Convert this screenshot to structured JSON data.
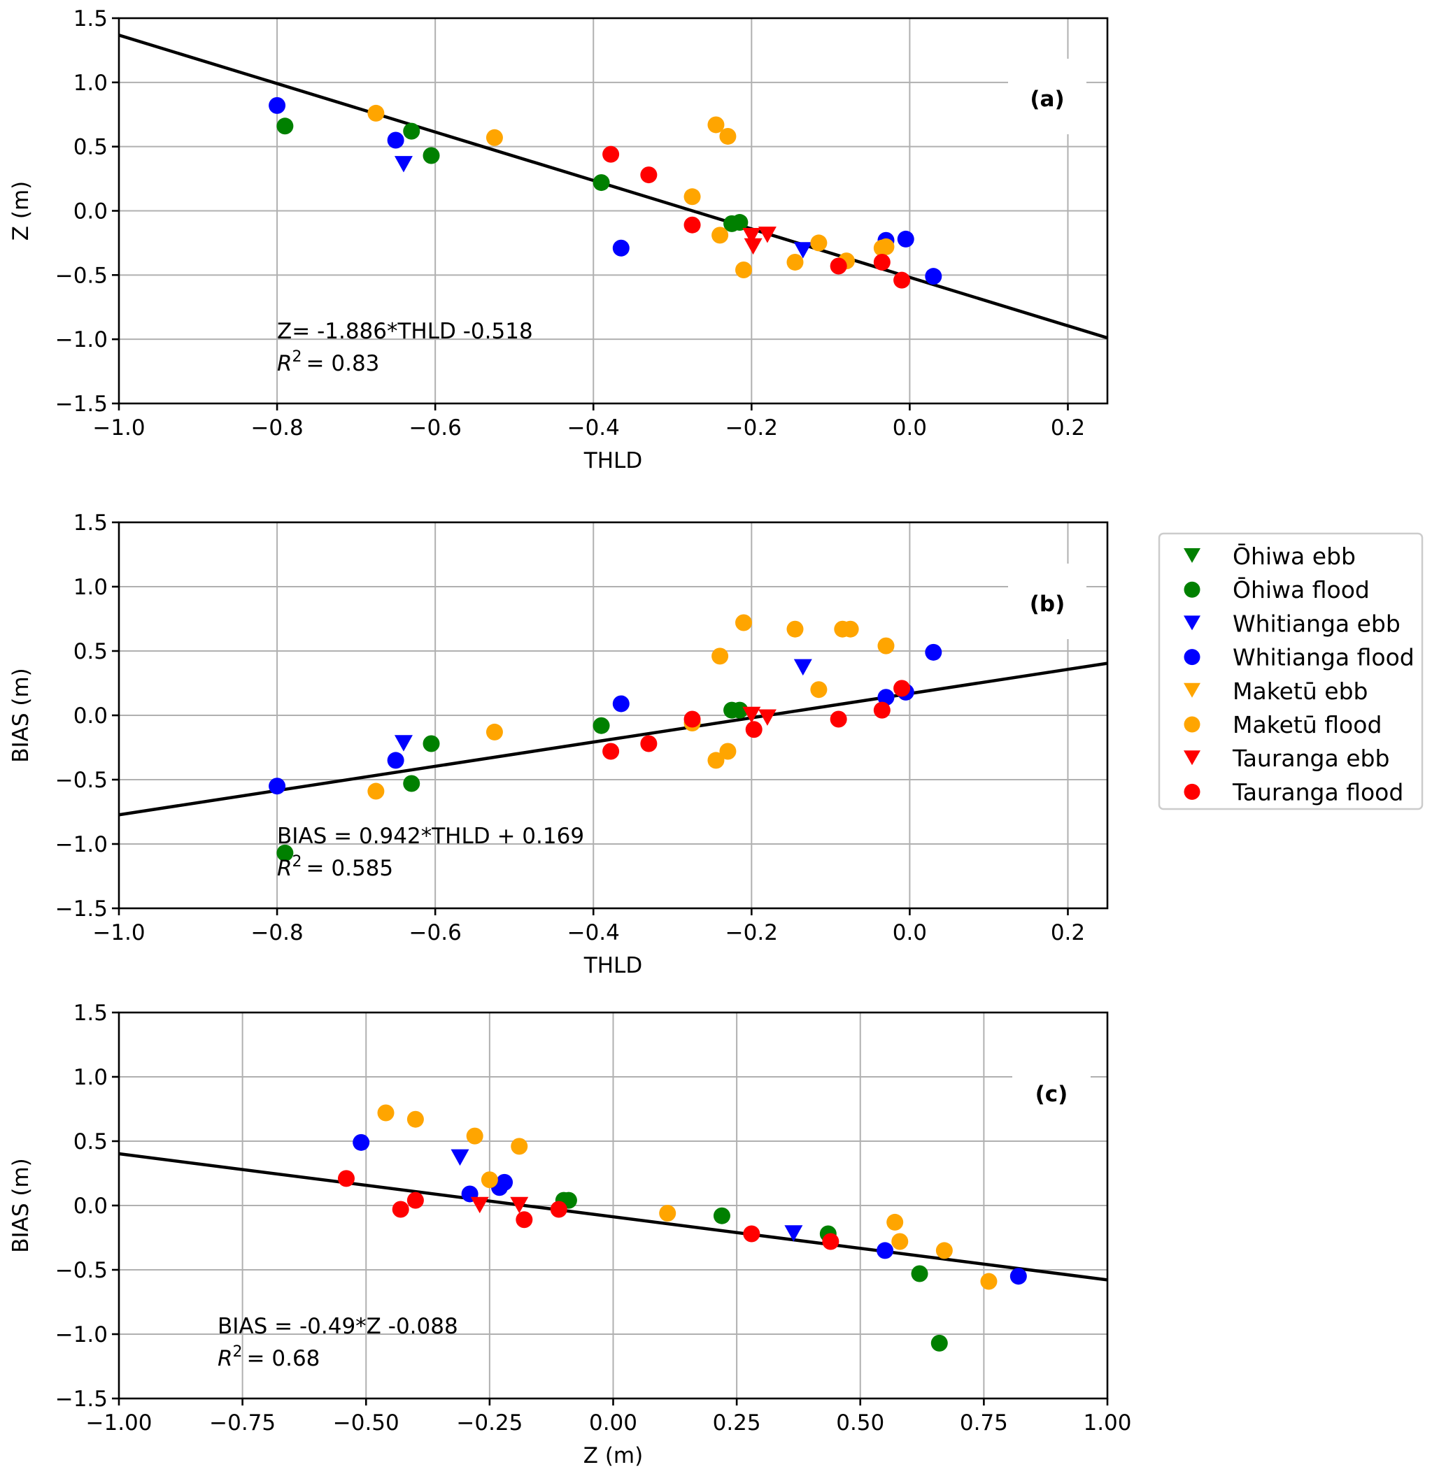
{
  "figure": {
    "legend": {
      "placement": "right-middle",
      "entries": [
        {
          "label": "Ōhiwa ebb",
          "marker": "triangle-down",
          "color": "#008000"
        },
        {
          "label": "Ōhiwa flood",
          "marker": "circle",
          "color": "#008000"
        },
        {
          "label": "Whitianga ebb",
          "marker": "triangle-down",
          "color": "#0000ff"
        },
        {
          "label": "Whitianga flood",
          "marker": "circle",
          "color": "#0000ff"
        },
        {
          "label": "Maketū ebb",
          "marker": "triangle-down",
          "color": "#ffa500"
        },
        {
          "label": "Maketū flood",
          "marker": "circle",
          "color": "#ffa500"
        },
        {
          "label": "Tauranga ebb",
          "marker": "triangle-down",
          "color": "#ff0000"
        },
        {
          "label": "Tauranga flood",
          "marker": "circle",
          "color": "#ff0000"
        }
      ]
    }
  },
  "chart_data": [
    {
      "type": "scatter",
      "panel": "(a)",
      "title": "",
      "xlabel": "THLD",
      "ylabel": "Z (m)",
      "xlim": [
        -1.0,
        0.25
      ],
      "ylim": [
        -1.5,
        1.5
      ],
      "xticks": [
        -1.0,
        -0.8,
        -0.6,
        -0.4,
        -0.2,
        0.0,
        0.2
      ],
      "xtick_labels": [
        "−1.0",
        "−0.8",
        "−0.6",
        "−0.4",
        "−0.2",
        "0.0",
        "0.2"
      ],
      "yticks": [
        1.5,
        1.0,
        0.5,
        0.0,
        -0.5,
        -1.0,
        -1.5
      ],
      "ytick_labels": [
        "1.5",
        "1.0",
        "0.5",
        "0.0",
        "−0.5",
        "−1.0",
        "−1.5"
      ],
      "grid": true,
      "fit": {
        "slope": -1.886,
        "intercept": -0.518
      },
      "equation": "Z= -1.886*THLD -0.518",
      "r2_label": "= 0.83",
      "series": [
        {
          "name": "Ōhiwa ebb",
          "points": []
        },
        {
          "name": "Ōhiwa flood",
          "points": [
            [
              -0.79,
              0.66
            ],
            [
              -0.63,
              0.62
            ],
            [
              -0.605,
              0.43
            ],
            [
              -0.39,
              0.22
            ],
            [
              -0.225,
              -0.1
            ],
            [
              -0.215,
              -0.09
            ]
          ]
        },
        {
          "name": "Whitianga ebb",
          "points": [
            [
              -0.64,
              0.37
            ],
            [
              -0.135,
              -0.3
            ]
          ]
        },
        {
          "name": "Whitianga flood",
          "points": [
            [
              -0.8,
              0.82
            ],
            [
              -0.65,
              0.55
            ],
            [
              -0.365,
              -0.29
            ],
            [
              -0.03,
              -0.23
            ],
            [
              -0.005,
              -0.22
            ],
            [
              0.03,
              -0.51
            ]
          ]
        },
        {
          "name": "Maketū ebb",
          "points": []
        },
        {
          "name": "Maketū flood",
          "points": [
            [
              -0.675,
              0.76
            ],
            [
              -0.525,
              0.57
            ],
            [
              -0.245,
              0.67
            ],
            [
              -0.23,
              0.58
            ],
            [
              -0.275,
              0.11
            ],
            [
              -0.24,
              -0.19
            ],
            [
              -0.21,
              -0.46
            ],
            [
              -0.145,
              -0.4
            ],
            [
              -0.115,
              -0.25
            ],
            [
              -0.08,
              -0.39
            ],
            [
              -0.03,
              -0.28
            ],
            [
              -0.035,
              -0.29
            ]
          ]
        },
        {
          "name": "Tauranga ebb",
          "points": [
            [
              -0.2,
              -0.19
            ],
            [
              -0.198,
              -0.27
            ],
            [
              -0.18,
              -0.18
            ]
          ]
        },
        {
          "name": "Tauranga flood",
          "points": [
            [
              -0.378,
              0.44
            ],
            [
              -0.33,
              0.28
            ],
            [
              -0.275,
              -0.11
            ],
            [
              -0.09,
              -0.43
            ],
            [
              -0.035,
              -0.4
            ],
            [
              -0.01,
              -0.54
            ]
          ]
        }
      ]
    },
    {
      "type": "scatter",
      "panel": "(b)",
      "title": "",
      "xlabel": "THLD",
      "ylabel": "BIAS (m)",
      "xlim": [
        -1.0,
        0.25
      ],
      "ylim": [
        -1.5,
        1.5
      ],
      "xticks": [
        -1.0,
        -0.8,
        -0.6,
        -0.4,
        -0.2,
        0.0,
        0.2
      ],
      "xtick_labels": [
        "−1.0",
        "−0.8",
        "−0.6",
        "−0.4",
        "−0.2",
        "0.0",
        "0.2"
      ],
      "yticks": [
        1.5,
        1.0,
        0.5,
        0.0,
        -0.5,
        -1.0,
        -1.5
      ],
      "ytick_labels": [
        "1.5",
        "1.0",
        "0.5",
        "0.0",
        "−0.5",
        "−1.0",
        "−1.5"
      ],
      "grid": true,
      "fit": {
        "slope": 0.942,
        "intercept": 0.169
      },
      "equation": "BIAS = 0.942*THLD + 0.169",
      "r2_label": "= 0.585",
      "series": [
        {
          "name": "Ōhiwa ebb",
          "points": []
        },
        {
          "name": "Ōhiwa flood",
          "points": [
            [
              -0.79,
              -1.07
            ],
            [
              -0.63,
              -0.53
            ],
            [
              -0.605,
              -0.22
            ],
            [
              -0.39,
              -0.08
            ],
            [
              -0.225,
              0.04
            ],
            [
              -0.215,
              0.04
            ]
          ]
        },
        {
          "name": "Whitianga ebb",
          "points": [
            [
              -0.64,
              -0.21
            ],
            [
              -0.135,
              0.38
            ]
          ]
        },
        {
          "name": "Whitianga flood",
          "points": [
            [
              -0.8,
              -0.55
            ],
            [
              -0.65,
              -0.35
            ],
            [
              -0.365,
              0.09
            ],
            [
              -0.03,
              0.14
            ],
            [
              -0.005,
              0.18
            ],
            [
              0.03,
              0.49
            ]
          ]
        },
        {
          "name": "Maketū ebb",
          "points": []
        },
        {
          "name": "Maketū flood",
          "points": [
            [
              -0.675,
              -0.59
            ],
            [
              -0.525,
              -0.13
            ],
            [
              -0.245,
              -0.35
            ],
            [
              -0.23,
              -0.28
            ],
            [
              -0.275,
              -0.06
            ],
            [
              -0.24,
              0.46
            ],
            [
              -0.21,
              0.72
            ],
            [
              -0.145,
              0.67
            ],
            [
              -0.115,
              0.2
            ],
            [
              -0.085,
              0.67
            ],
            [
              -0.075,
              0.67
            ],
            [
              -0.03,
              0.54
            ]
          ]
        },
        {
          "name": "Tauranga ebb",
          "points": [
            [
              -0.2,
              0.01
            ],
            [
              -0.18,
              -0.01
            ]
          ]
        },
        {
          "name": "Tauranga flood",
          "points": [
            [
              -0.378,
              -0.28
            ],
            [
              -0.33,
              -0.22
            ],
            [
              -0.275,
              -0.03
            ],
            [
              -0.197,
              -0.11
            ],
            [
              -0.09,
              -0.03
            ],
            [
              -0.035,
              0.04
            ],
            [
              -0.01,
              0.21
            ]
          ]
        }
      ]
    },
    {
      "type": "scatter",
      "panel": "(c)",
      "title": "",
      "xlabel": "Z (m)",
      "ylabel": "BIAS (m)",
      "xlim": [
        -1.0,
        1.0
      ],
      "ylim": [
        -1.5,
        1.5
      ],
      "xticks": [
        -1.0,
        -0.75,
        -0.5,
        -0.25,
        0.0,
        0.25,
        0.5,
        0.75,
        1.0
      ],
      "xtick_labels": [
        "−1.00",
        "−0.75",
        "−0.50",
        "−0.25",
        "0.00",
        "0.25",
        "0.50",
        "0.75",
        "1.00"
      ],
      "yticks": [
        1.5,
        1.0,
        0.5,
        0.0,
        -0.5,
        -1.0,
        -1.5
      ],
      "ytick_labels": [
        "1.5",
        "1.0",
        "0.5",
        "0.0",
        "−0.5",
        "−1.0",
        "−1.5"
      ],
      "grid": true,
      "fit": {
        "slope": -0.49,
        "intercept": -0.088
      },
      "equation": "BIAS = -0.49*Z -0.088",
      "r2_label": "= 0.68",
      "series": [
        {
          "name": "Ōhiwa ebb",
          "points": []
        },
        {
          "name": "Ōhiwa flood",
          "points": [
            [
              0.66,
              -1.07
            ],
            [
              0.62,
              -0.53
            ],
            [
              0.435,
              -0.22
            ],
            [
              0.22,
              -0.08
            ],
            [
              -0.1,
              0.04
            ],
            [
              -0.09,
              0.04
            ]
          ]
        },
        {
          "name": "Whitianga ebb",
          "points": [
            [
              -0.31,
              0.38
            ],
            [
              0.365,
              -0.21
            ]
          ]
        },
        {
          "name": "Whitianga flood",
          "points": [
            [
              0.82,
              -0.55
            ],
            [
              0.55,
              -0.35
            ],
            [
              -0.29,
              0.09
            ],
            [
              -0.23,
              0.14
            ],
            [
              -0.22,
              0.18
            ],
            [
              -0.51,
              0.49
            ]
          ]
        },
        {
          "name": "Maketū ebb",
          "points": []
        },
        {
          "name": "Maketū flood",
          "points": [
            [
              0.76,
              -0.59
            ],
            [
              0.57,
              -0.13
            ],
            [
              0.67,
              -0.35
            ],
            [
              0.58,
              -0.28
            ],
            [
              0.11,
              -0.06
            ],
            [
              -0.19,
              0.46
            ],
            [
              -0.46,
              0.72
            ],
            [
              -0.4,
              0.67
            ],
            [
              -0.25,
              0.2
            ],
            [
              -0.28,
              0.54
            ]
          ]
        },
        {
          "name": "Tauranga ebb",
          "points": [
            [
              -0.27,
              0.01
            ],
            [
              -0.19,
              0.01
            ]
          ]
        },
        {
          "name": "Tauranga flood",
          "points": [
            [
              0.44,
              -0.28
            ],
            [
              0.28,
              -0.22
            ],
            [
              -0.11,
              -0.03
            ],
            [
              -0.18,
              -0.11
            ],
            [
              -0.43,
              -0.03
            ],
            [
              -0.4,
              0.04
            ],
            [
              -0.54,
              0.21
            ]
          ]
        }
      ]
    }
  ]
}
